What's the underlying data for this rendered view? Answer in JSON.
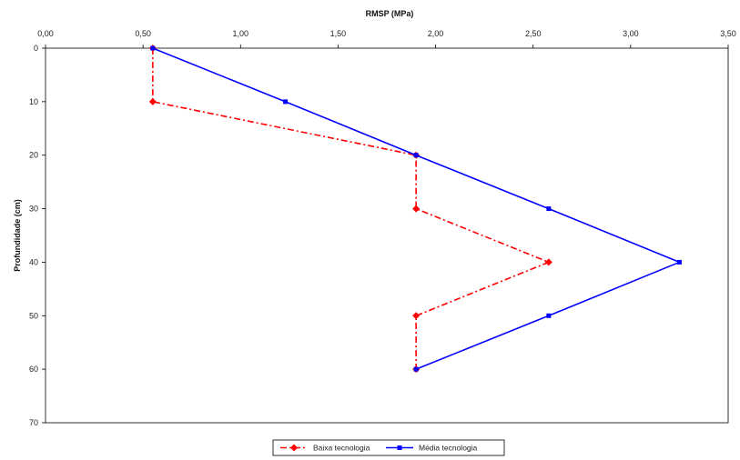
{
  "chart_data": {
    "type": "line",
    "orientation": "depth-profile",
    "xlabel": "RMSP (MPa)",
    "ylabel": "Profundidade (cm)",
    "x_axis_position": "top",
    "xlim": [
      0,
      3.5
    ],
    "ylim": [
      0,
      70
    ],
    "y_inverted": true,
    "x_ticks": [
      "0,00",
      "0,50",
      "1,00",
      "1,50",
      "2,00",
      "2,50",
      "3,00",
      "3,50"
    ],
    "y_ticks": [
      "0",
      "10",
      "20",
      "30",
      "40",
      "50",
      "60",
      "70"
    ],
    "grid": false,
    "legend_position": "bottom",
    "series": [
      {
        "name": "Baixa tecnologia",
        "color": "#ff0000",
        "line_style": "dash-dot",
        "marker": "diamond",
        "x": [
          0.55,
          0.55,
          1.9,
          1.9,
          2.58,
          1.9,
          1.9
        ],
        "y": [
          0,
          10,
          20,
          30,
          40,
          50,
          60
        ]
      },
      {
        "name": "Média tecnologia",
        "color": "#0000ff",
        "line_style": "solid",
        "marker": "square",
        "x": [
          0.55,
          1.23,
          1.9,
          2.58,
          3.25,
          2.58,
          1.9
        ],
        "y": [
          0,
          10,
          20,
          30,
          40,
          50,
          60
        ]
      }
    ]
  }
}
